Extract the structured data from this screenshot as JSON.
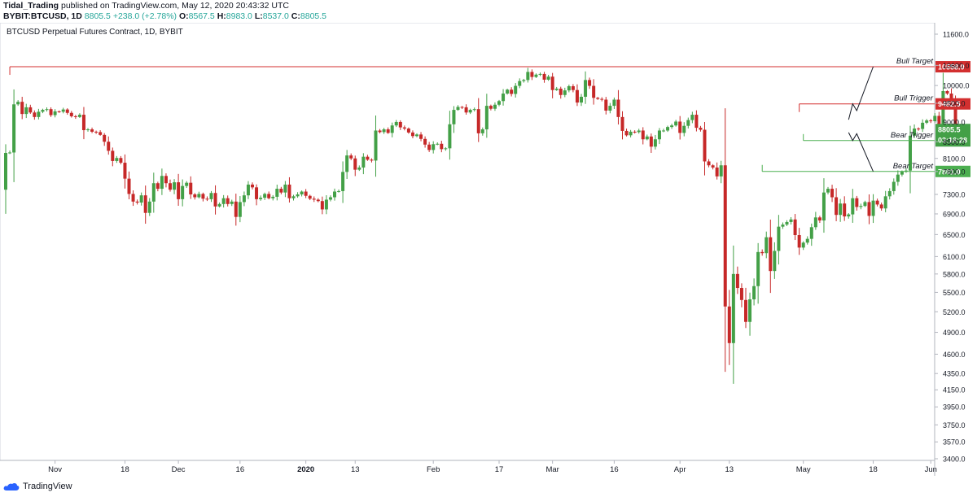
{
  "header": {
    "author": "Tidal_Trading",
    "published": "published on TradingView.com, May 12, 2020 20:43:32 UTC",
    "symbol": "BYBIT:BTCUSD, 1D",
    "last": "8805.5",
    "change": "+238.0 (+2.78%)",
    "o_label": "O:",
    "o_value": "8567.5",
    "h_label": "H:",
    "h_value": "8983.0",
    "l_label": "L:",
    "l_value": "8537.0",
    "c_label": "C:",
    "c_value": "8805.5"
  },
  "footer": {
    "brand": "TradingView"
  },
  "colors": {
    "up": "#43a047",
    "down": "#c62828",
    "bull": "#d32f2f",
    "bear": "#4caf50"
  },
  "chart_data": {
    "type": "candlestick",
    "title": "BTCUSD Perpetual Futures Contract, 1D, BYBIT",
    "start_date": "2019-10-20",
    "y_ticks": [
      3400,
      3570,
      3750,
      3950,
      4150,
      4350,
      4600,
      4900,
      5200,
      5500,
      5800,
      6100,
      6500,
      6900,
      7300,
      7800,
      8100,
      8500,
      9000,
      9500,
      10000,
      10600,
      11600
    ],
    "x_labels": [
      {
        "label": "Nov",
        "date": "2019-11-01"
      },
      {
        "label": "18",
        "date": "2019-11-18"
      },
      {
        "label": "Dec",
        "date": "2019-12-01"
      },
      {
        "label": "16",
        "date": "2019-12-16"
      },
      {
        "label": "2020",
        "date": "2020-01-01"
      },
      {
        "label": "13",
        "date": "2020-01-13"
      },
      {
        "label": "Feb",
        "date": "2020-02-01"
      },
      {
        "label": "17",
        "date": "2020-02-17"
      },
      {
        "label": "Mar",
        "date": "2020-03-01"
      },
      {
        "label": "16",
        "date": "2020-03-16"
      },
      {
        "label": "Apr",
        "date": "2020-04-01"
      },
      {
        "label": "13",
        "date": "2020-04-13"
      },
      {
        "label": "May",
        "date": "2020-05-01"
      },
      {
        "label": "18",
        "date": "2020-05-18"
      },
      {
        "label": "Jun",
        "date": "2020-06-01"
      }
    ],
    "closes": [
      8230,
      8240,
      9470,
      9540,
      9210,
      9390,
      9250,
      9130,
      9270,
      9320,
      9340,
      9180,
      9280,
      9270,
      9330,
      9240,
      9150,
      9130,
      9190,
      8790,
      8810,
      8750,
      8740,
      8670,
      8500,
      8280,
      8040,
      8110,
      8000,
      7640,
      7310,
      7150,
      7130,
      7280,
      6920,
      7150,
      7540,
      7420,
      7700,
      7540,
      7400,
      7560,
      7200,
      7480,
      7550,
      7300,
      7240,
      7310,
      7210,
      7200,
      7330,
      7050,
      7100,
      7220,
      7100,
      7150,
      6840,
      7140,
      7280,
      7510,
      7450,
      7200,
      7230,
      7310,
      7220,
      7250,
      7420,
      7340,
      7510,
      7220,
      7260,
      7300,
      7360,
      7270,
      7210,
      7190,
      7160,
      6990,
      7190,
      7240,
      7360,
      7370,
      7790,
      8170,
      8100,
      7840,
      7890,
      8140,
      8070,
      8050,
      8780,
      8740,
      8810,
      8720,
      8910,
      9000,
      8860,
      8830,
      8730,
      8640,
      8680,
      8570,
      8430,
      8300,
      8440,
      8450,
      8320,
      8340,
      8940,
      9320,
      9400,
      9390,
      9250,
      9320,
      9340,
      8710,
      8810,
      9430,
      9350,
      9460,
      9560,
      9770,
      9880,
      9760,
      9990,
      10130,
      10160,
      10400,
      10250,
      10320,
      10340,
      10170,
      10260,
      9870,
      9910,
      9730,
      9860,
      9980,
      9870,
      9520,
      9680,
      10160,
      9990,
      9650,
      9620,
      9600,
      9300,
      9430,
      9600,
      9130,
      8770,
      8660,
      8750,
      8740,
      8780,
      8560,
      8630,
      8380,
      8560,
      8780,
      8780,
      8870,
      8910,
      9010,
      8720,
      8900,
      9050,
      9190,
      8850,
      8800,
      8030,
      7940,
      7890,
      7690,
      7940,
      5280,
      4750,
      5800,
      5570,
      5380,
      5050,
      5390,
      5600,
      6180,
      6160,
      6450,
      5850,
      6200,
      6650,
      6690,
      6740,
      6790,
      6490,
      6260,
      6350,
      6420,
      6640,
      6830,
      6770,
      7340,
      7420,
      7240,
      6880,
      7110,
      6850,
      6890,
      7220,
      7040,
      7060,
      7140,
      6860,
      7170,
      7090,
      7010,
      7260,
      7370,
      7570,
      7730,
      7800,
      7820,
      8650,
      8830,
      8820,
      8980,
      9040,
      9020,
      9160,
      8910,
      9840,
      9770,
      9520,
      8740,
      8600,
      8800
    ],
    "levels": [
      {
        "name": "Bull Target",
        "value": 10558.0,
        "label": "10558.0",
        "color": "#d32f2f",
        "x1": "2019-10-21",
        "x2": "2020-05-19"
      },
      {
        "name": "Bull Trigger",
        "value": 9482.5,
        "label": "9482.5",
        "color": "#d32f2f",
        "x1": "2020-04-30",
        "x2": "2020-05-19"
      },
      {
        "name": "Bear Trigger",
        "value": 8529.0,
        "label": "8529.0",
        "color": "#4caf50",
        "x1": "2020-05-01",
        "x2": "2020-05-19"
      },
      {
        "name": "Bear Target",
        "value": 7801.0,
        "label": "7801.0",
        "color": "#4caf50",
        "x1": "2020-04-21",
        "x2": "2020-05-19"
      }
    ],
    "last_price": {
      "label": "8805.5",
      "countdown": "03:16:28",
      "color": "#43a047"
    },
    "projection": {
      "bull": [
        [
          "2020-05-12",
          9060
        ],
        [
          "2020-05-13",
          9482.5
        ],
        [
          "2020-05-14",
          9300
        ],
        [
          "2020-05-18",
          10558
        ]
      ],
      "bear": [
        [
          "2020-05-12",
          8730
        ],
        [
          "2020-05-13",
          8529
        ],
        [
          "2020-05-14",
          8700
        ],
        [
          "2020-05-18",
          7801
        ]
      ]
    }
  }
}
